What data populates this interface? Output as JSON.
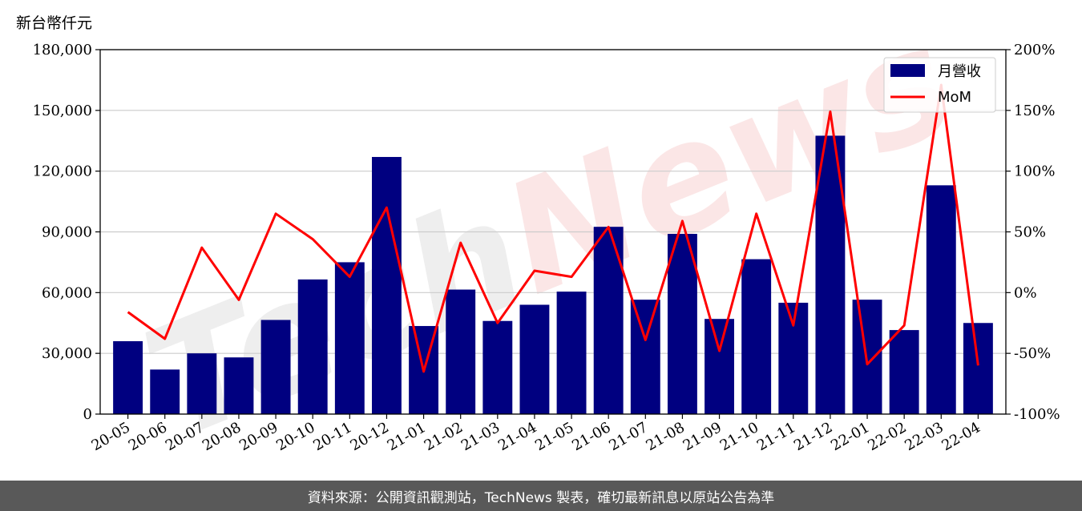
{
  "unit_label": "新台幣仟元",
  "footer_text": "資料來源：公開資訊觀測站，TechNews 製表，確切最新訊息以原站公告為準",
  "watermark": {
    "part1": "Tech",
    "part2": "News"
  },
  "colors": {
    "bar": "#000080",
    "line": "#ff0000",
    "grid": "#cccccc",
    "footer": "#595959"
  },
  "chart_data": {
    "type": "bar",
    "categories": [
      "20-05",
      "20-06",
      "20-07",
      "20-08",
      "20-09",
      "20-10",
      "20-11",
      "20-12",
      "21-01",
      "21-02",
      "21-03",
      "21-04",
      "21-05",
      "21-06",
      "21-07",
      "21-08",
      "21-09",
      "21-10",
      "21-11",
      "21-12",
      "22-01",
      "22-02",
      "22-03",
      "22-04"
    ],
    "series": [
      {
        "name": "月營收",
        "type": "bar",
        "axis": "left",
        "values": [
          36000,
          22000,
          30000,
          28000,
          46500,
          66500,
          75000,
          127000,
          43500,
          61500,
          46000,
          54000,
          60500,
          92500,
          56500,
          89000,
          47000,
          76500,
          55000,
          137500,
          56500,
          41500,
          113000,
          45000
        ]
      },
      {
        "name": "MoM",
        "type": "line",
        "axis": "right",
        "values": [
          -16,
          -38,
          37,
          -6,
          65,
          44,
          13,
          70,
          -65,
          41,
          -25,
          18,
          13,
          54,
          -39,
          59,
          -48,
          65,
          -27,
          149,
          -59,
          -27,
          171,
          -60
        ]
      }
    ],
    "left_axis": {
      "ylim": [
        0,
        180000
      ],
      "ticks": [
        "0",
        "30,000",
        "60,000",
        "90,000",
        "120,000",
        "150,000",
        "180,000"
      ]
    },
    "right_axis": {
      "ylim": [
        -100,
        200
      ],
      "ticks": [
        "-100%",
        "-50%",
        "0%",
        "50%",
        "100%",
        "150%",
        "200%"
      ]
    },
    "grid": true,
    "legend": "top-right"
  }
}
